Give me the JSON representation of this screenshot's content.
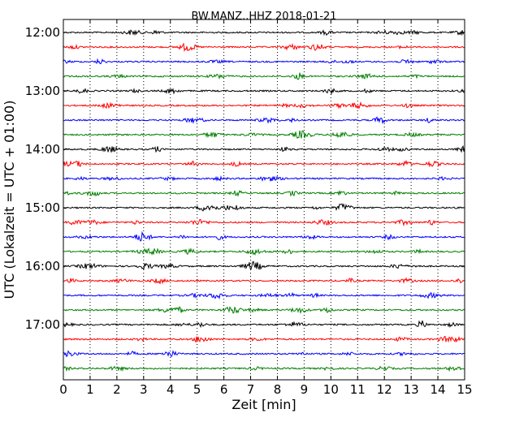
{
  "chart_data": {
    "type": "line",
    "title": "BW.MANZ..HHZ 2018-01-21",
    "xlabel": "Zeit  [min]",
    "ylabel": "UTC (Lokalzeit = UTC + 01:00)",
    "xlim": [
      0,
      15
    ],
    "x_ticks": [
      "0",
      "1",
      "2",
      "3",
      "4",
      "5",
      "6",
      "7",
      "8",
      "9",
      "10",
      "11",
      "12",
      "13",
      "14",
      "15"
    ],
    "y_ticks": [
      "12:00",
      "13:00",
      "14:00",
      "15:00",
      "16:00",
      "17:00"
    ],
    "grid": "vertical-dotted",
    "trace_colors": [
      "#000000",
      "#ff0000",
      "#0000ff",
      "#007f00"
    ],
    "trace_starts": [
      "12:00",
      "12:15",
      "12:30",
      "12:45",
      "13:00",
      "13:15",
      "13:30",
      "13:45",
      "14:00",
      "14:15",
      "14:30",
      "14:45",
      "15:00",
      "15:15",
      "15:30",
      "15:45",
      "16:00",
      "16:15",
      "16:30",
      "16:45",
      "17:00",
      "17:15",
      "17:30",
      "17:45"
    ]
  }
}
